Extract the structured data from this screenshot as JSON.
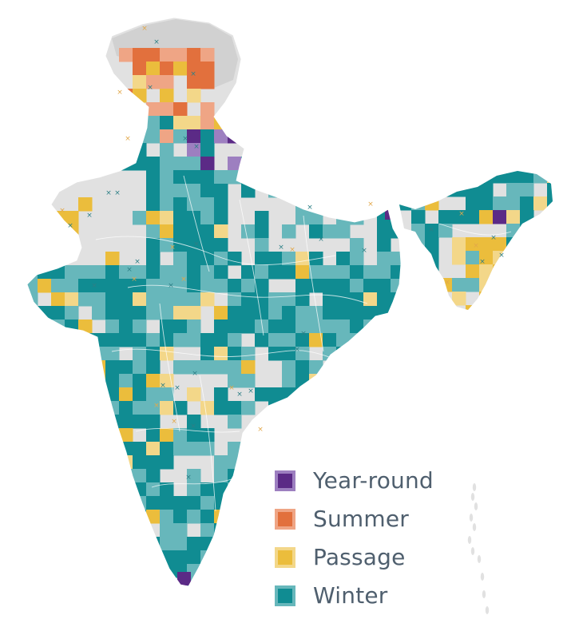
{
  "legend": {
    "items": [
      {
        "key": "year-round",
        "label": "Year-round",
        "color": "#5b2a86",
        "border": "#9d7fc0"
      },
      {
        "key": "summer",
        "label": "Summer",
        "color": "#e2703d",
        "border": "#efa585"
      },
      {
        "key": "passage",
        "label": "Passage",
        "color": "#ebbd3c",
        "border": "#f3d789"
      },
      {
        "key": "winter",
        "label": "Winter",
        "color": "#108c92",
        "border": "#67b7bb"
      }
    ]
  },
  "map": {
    "land_color": "#e1e1e1",
    "terrain_color": "#d1d1d1",
    "border_color": "#ffffff",
    "marker_symbol": "×",
    "region": "India and neighbouring areas",
    "surveyed_without_detection_colors": {
      "winter": "#67b7bb",
      "summer": "#efa585",
      "passage": "#f3d789",
      "year-round": "#9d7fc0"
    }
  }
}
